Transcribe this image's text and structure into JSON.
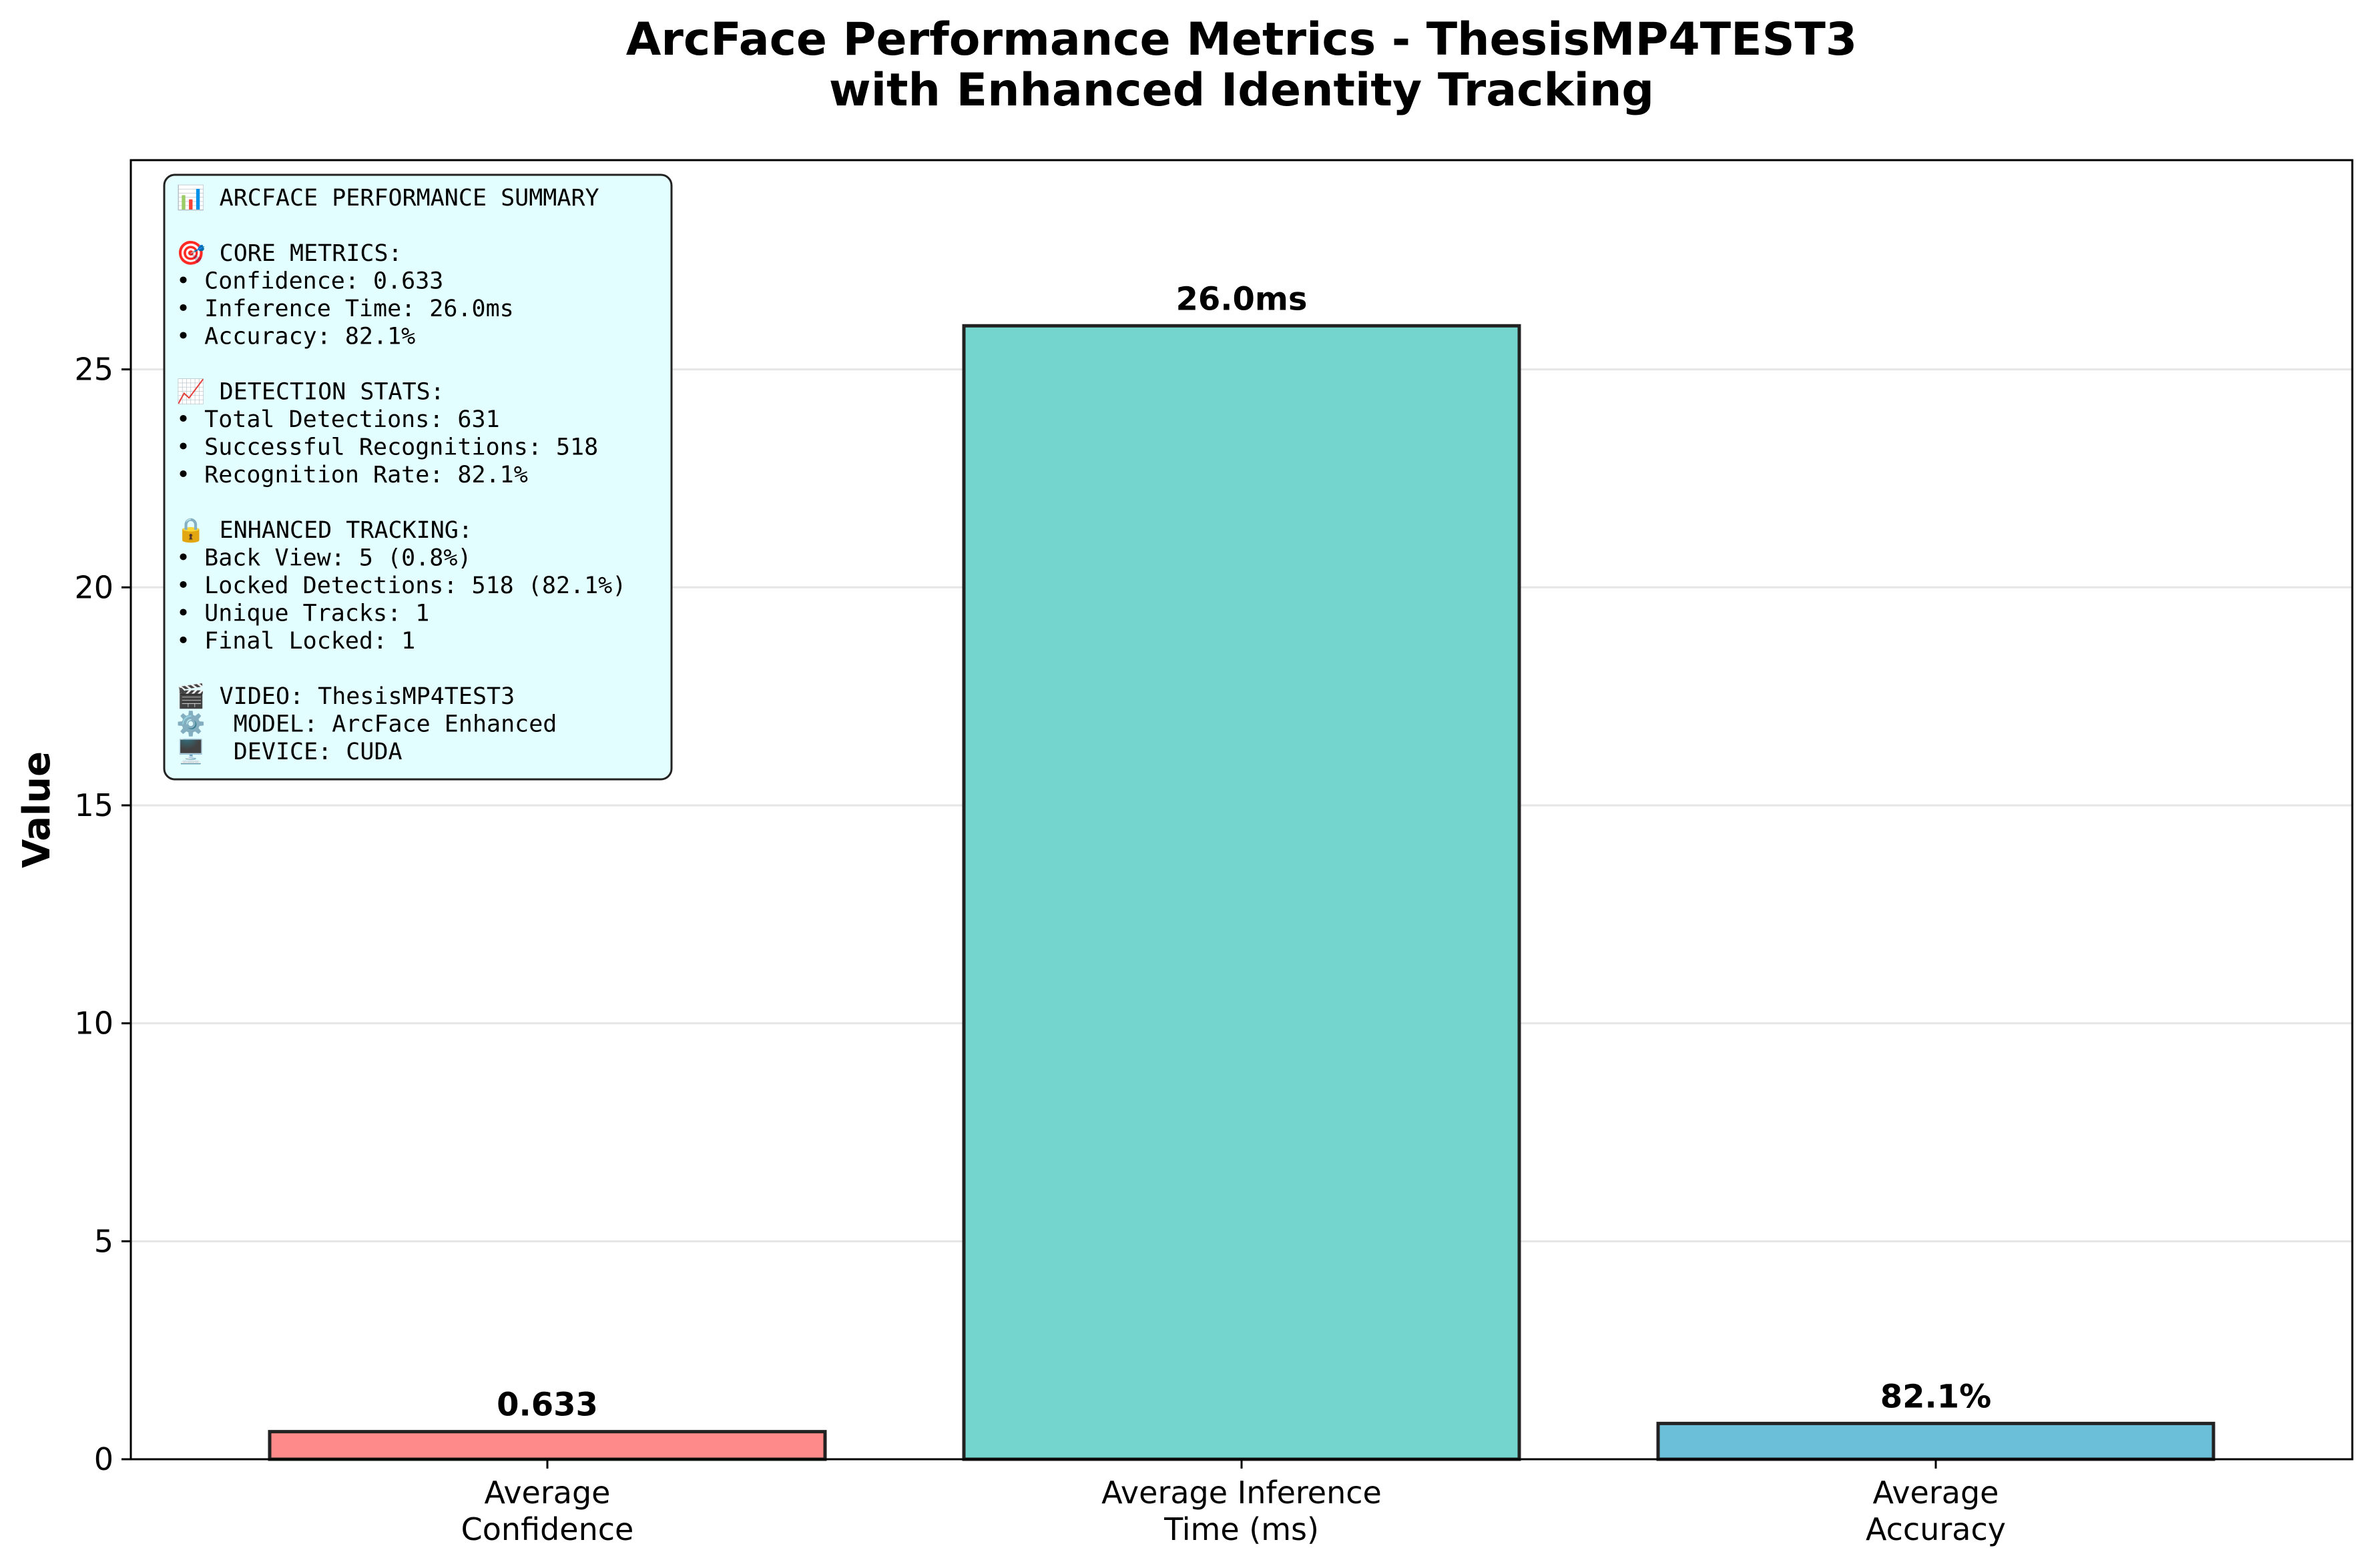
{
  "chart_data": {
    "type": "bar",
    "title": [
      "ArcFace Performance Metrics - ThesisMP4TEST3",
      "with Enhanced Identity Tracking"
    ],
    "ylabel": "Value",
    "xlabel": "",
    "ylim": [
      0,
      29.8
    ],
    "yticks": [
      0,
      5,
      10,
      15,
      20,
      25
    ],
    "grid": "y",
    "categories": [
      [
        "Average",
        "Confidence"
      ],
      [
        "Average Inference",
        "Time (ms)"
      ],
      [
        "Average",
        "Accuracy"
      ]
    ],
    "values": [
      0.633,
      26.0,
      0.821
    ],
    "value_labels": [
      "0.633",
      "26.0ms",
      "82.1%"
    ],
    "colors": [
      "#ff8a8a",
      "#74d5cf",
      "#6bbfd9"
    ],
    "edge_color": "#222222",
    "summary_box_location": "top-left",
    "summary_box_color": "#e3feff",
    "summary_lines": [
      "📊 ARCFACE PERFORMANCE SUMMARY",
      "",
      "🎯 CORE METRICS:",
      "• Confidence: 0.633",
      "• Inference Time: 26.0ms",
      "• Accuracy: 82.1%",
      "",
      "📈 DETECTION STATS:",
      "• Total Detections: 631",
      "• Successful Recognitions: 518",
      "• Recognition Rate: 82.1%",
      "",
      "🔒 ENHANCED TRACKING:",
      "• Back View: 5 (0.8%)",
      "• Locked Detections: 518 (82.1%)",
      "• Unique Tracks: 1",
      "• Final Locked: 1",
      "",
      "🎬 VIDEO: ThesisMP4TEST3",
      "⚙️  MODEL: ArcFace Enhanced",
      "🖥️  DEVICE: CUDA"
    ]
  }
}
